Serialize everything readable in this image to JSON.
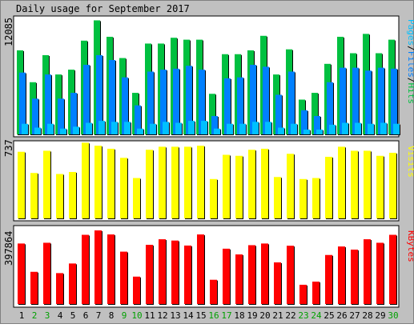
{
  "title": "Daily usage for September 2017",
  "colors": {
    "background": "#c0c0c0",
    "panel": "#ffffff",
    "hits": "#00c040",
    "files": "#0080ff",
    "pages": "#00c0ff",
    "visits": "#ffff00",
    "kbytes": "#ff0000",
    "weekend_label": "#00a000",
    "weekday_label": "#000000"
  },
  "chart_data": [
    {
      "type": "bar",
      "name": "hits-files-pages",
      "ymax_label": "12085",
      "ymax": 12085,
      "legend": [
        "Pages",
        "Files",
        "Hits"
      ],
      "legend_separator": "/",
      "categories": [
        "1",
        "2",
        "3",
        "4",
        "5",
        "6",
        "7",
        "8",
        "9",
        "10",
        "11",
        "12",
        "13",
        "14",
        "15",
        "16",
        "17",
        "18",
        "19",
        "20",
        "21",
        "22",
        "23",
        "24",
        "25",
        "26",
        "27",
        "28",
        "29",
        "30"
      ],
      "series": [
        {
          "name": "Hits",
          "values": [
            8700,
            5400,
            8200,
            6200,
            6700,
            9700,
            11800,
            10100,
            7900,
            4300,
            9400,
            9400,
            10000,
            9800,
            9800,
            4200,
            8300,
            8300,
            8700,
            10200,
            6200,
            8800,
            3600,
            4300,
            7300,
            10100,
            8400,
            10400,
            8400,
            9800
          ]
        },
        {
          "name": "Files",
          "values": [
            6400,
            3700,
            6200,
            3700,
            4300,
            7200,
            8200,
            7700,
            5900,
            3000,
            6500,
            6700,
            6800,
            7100,
            6700,
            1900,
            5800,
            5900,
            7200,
            7000,
            4100,
            6500,
            2500,
            1900,
            5400,
            6900,
            6900,
            6600,
            6900,
            6800
          ]
        },
        {
          "name": "Pages",
          "values": [
            1100,
            700,
            1100,
            600,
            800,
            1200,
            1400,
            1300,
            1300,
            600,
            1100,
            1300,
            1200,
            1400,
            1400,
            600,
            1100,
            1100,
            1300,
            1300,
            700,
            1100,
            500,
            500,
            1000,
            1200,
            1200,
            1100,
            1200,
            1100
          ]
        }
      ]
    },
    {
      "type": "bar",
      "name": "visits",
      "ymax_label": "737",
      "ymax": 737,
      "legend": [
        "Visits"
      ],
      "categories": [
        "1",
        "2",
        "3",
        "4",
        "5",
        "6",
        "7",
        "8",
        "9",
        "10",
        "11",
        "12",
        "13",
        "14",
        "15",
        "16",
        "17",
        "18",
        "19",
        "20",
        "21",
        "22",
        "23",
        "24",
        "25",
        "26",
        "27",
        "28",
        "29",
        "30"
      ],
      "series": [
        {
          "name": "Visits",
          "values": [
            660,
            450,
            670,
            440,
            460,
            750,
            720,
            690,
            600,
            400,
            680,
            710,
            710,
            710,
            720,
            390,
            630,
            620,
            680,
            690,
            410,
            640,
            390,
            400,
            610,
            710,
            670,
            670,
            620,
            650
          ]
        }
      ]
    },
    {
      "type": "bar",
      "name": "kbytes",
      "ymax_label": "397864",
      "ymax": 397864,
      "legend": [
        "KBytes"
      ],
      "categories": [
        "1",
        "2",
        "3",
        "4",
        "5",
        "6",
        "7",
        "8",
        "9",
        "10",
        "11",
        "12",
        "13",
        "14",
        "15",
        "16",
        "17",
        "18",
        "19",
        "20",
        "21",
        "22",
        "23",
        "24",
        "25",
        "26",
        "27",
        "28",
        "29",
        "30"
      ],
      "series": [
        {
          "name": "KBytes",
          "values": [
            327000,
            174000,
            331000,
            167000,
            219000,
            374000,
            397864,
            376000,
            283000,
            148000,
            320000,
            350000,
            343000,
            316000,
            376000,
            131000,
            299000,
            268000,
            318000,
            327000,
            225000,
            315000,
            104000,
            121000,
            265000,
            311000,
            294000,
            350000,
            331000,
            374000
          ]
        }
      ]
    }
  ],
  "weekend_days": [
    "2",
    "3",
    "9",
    "10",
    "16",
    "17",
    "23",
    "24",
    "30"
  ]
}
